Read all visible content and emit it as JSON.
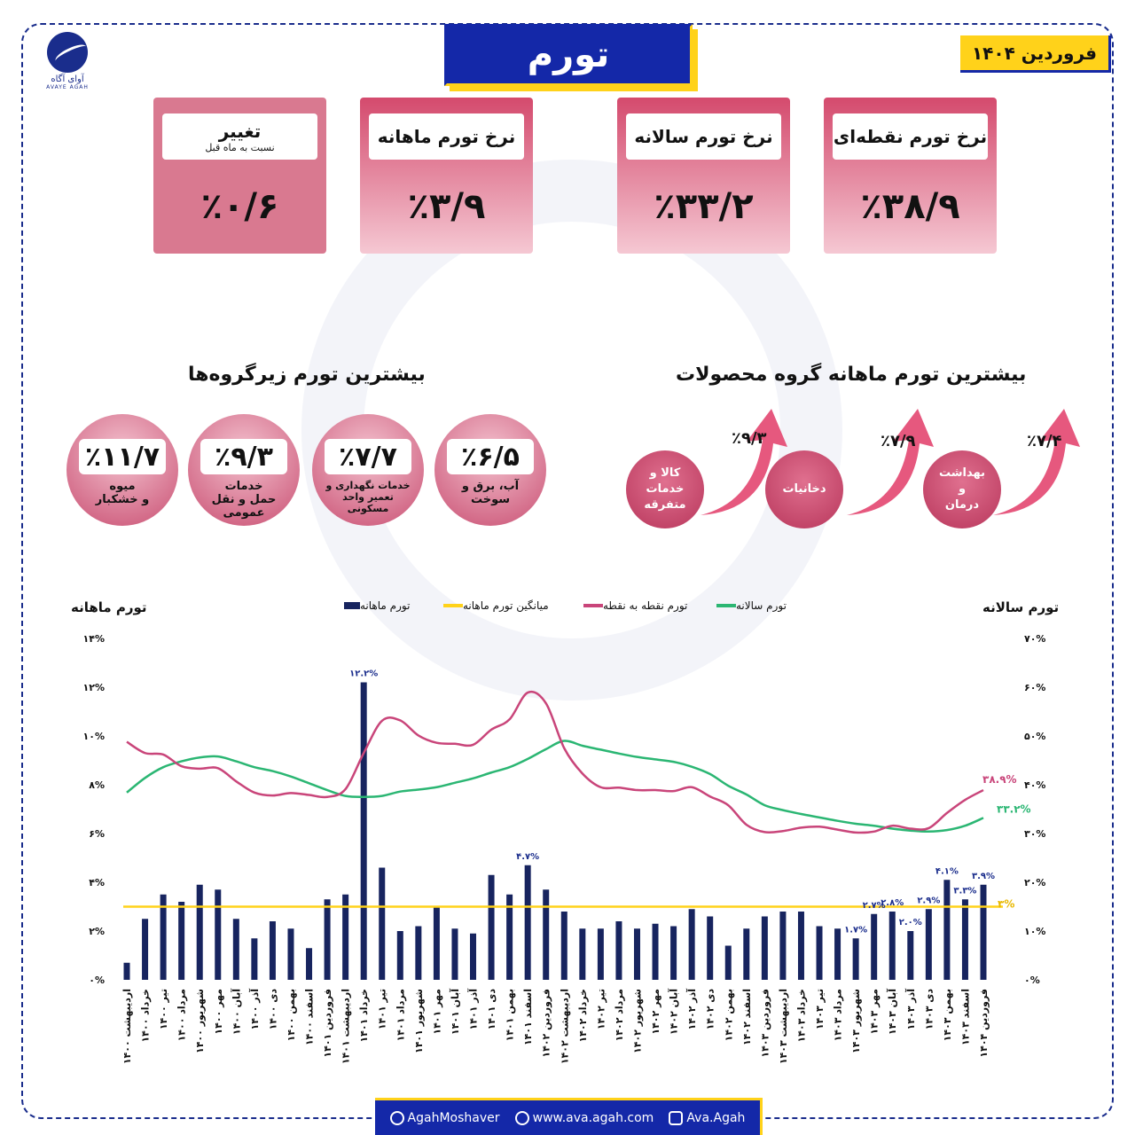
{
  "brand": {
    "name_fa": "آوای آگاه",
    "name_en": "AVAYE AGAH"
  },
  "title": "تورم",
  "date": "فروردین ۱۴۰۴",
  "stats": [
    {
      "label": "نرخ تورم نقطه‌ای",
      "sub": "",
      "value": "٪۳۸/۹"
    },
    {
      "label": "نرخ تورم سالانه",
      "sub": "",
      "value": "٪۳۳/۲"
    },
    {
      "label": "نرخ تورم ماهانه",
      "sub": "",
      "value": "٪۳/۹"
    },
    {
      "label": "تغییر",
      "sub": "نسبت به ماه قبل",
      "value": "٪۰/۶"
    }
  ],
  "subgroups": {
    "title": "بیشترین تورم زیرگروه‌ها",
    "items": [
      {
        "value": "٪۶/۵",
        "name": "آب، برق و\nسوخت"
      },
      {
        "value": "٪۷/۷",
        "name": "خدمات نگهداری و\nتعمیر واحد\nمسکونی"
      },
      {
        "value": "٪۹/۳",
        "name": "خدمات\nحمل و نقل\nعمومی"
      },
      {
        "value": "٪۱۱/۷",
        "name": "میوه\nو خشکبار"
      }
    ]
  },
  "groups": {
    "title": "بیشترین تورم ماهانه گروه محصولات",
    "items": [
      {
        "name": "بهداشت\nو\nدرمان",
        "value": "٪۷/۴"
      },
      {
        "name": "دخانیات",
        "value": "٪۷/۹"
      },
      {
        "name": "کالا و\nخدمات\nمتفرقه",
        "value": "٪۹/۳"
      }
    ]
  },
  "footer": {
    "telegram": "AgahMoshaver",
    "web": "www.ava.agah.com",
    "instagram": "Ava.Agah"
  },
  "colors": {
    "navy": "#1428a8",
    "yellow": "#ffd21a",
    "pink": "#c9457a",
    "green": "#2bb673",
    "bar": "#17245f"
  },
  "chart_data": {
    "type": "bar+line",
    "left_axis_title": "تورم ماهانه",
    "right_axis_title": "تورم سالانه",
    "left_ticks": [
      "۰%",
      "۲%",
      "۴%",
      "۶%",
      "۸%",
      "۱۰%",
      "۱۲%",
      "۱۴%"
    ],
    "right_ticks": [
      "۰%",
      "۱۰%",
      "۲۰%",
      "۳۰%",
      "۴۰%",
      "۵۰%",
      "۶۰%",
      "۷۰%"
    ],
    "ylim_left": [
      0,
      14
    ],
    "ylim_right": [
      0,
      70
    ],
    "legend": [
      {
        "name": "تورم ماهانه",
        "kind": "bar"
      },
      {
        "name": "میانگین تورم ماهانه",
        "kind": "avg"
      },
      {
        "name": "تورم نقطه به نقطه",
        "kind": "point"
      },
      {
        "name": "تورم سالانه",
        "kind": "annual"
      }
    ],
    "categories": [
      "اردیبهشت ۱۴۰۰",
      "خرداد ۱۴۰۰",
      "تیر ۱۴۰۰",
      "مرداد ۱۴۰۰",
      "شهریور ۱۴۰۰",
      "مهر ۱۴۰۰",
      "آبان ۱۴۰۰",
      "آذر ۱۴۰۰",
      "دی ۱۴۰۰",
      "بهمن ۱۴۰۰",
      "اسفند ۱۴۰۰",
      "فروردین ۱۴۰۱",
      "اردیبهشت ۱۴۰۱",
      "خرداد ۱۴۰۱",
      "تیر ۱۴۰۱",
      "مرداد ۱۴۰۱",
      "شهریور ۱۴۰۱",
      "مهر ۱۴۰۱",
      "آبان ۱۴۰۱",
      "آذر ۱۴۰۱",
      "دی ۱۴۰۱",
      "بهمن ۱۴۰۱",
      "اسفند ۱۴۰۱",
      "فروردین ۱۴۰۲",
      "اردیبهشت ۱۴۰۲",
      "خرداد ۱۴۰۲",
      "تیر ۱۴۰۲",
      "مرداد ۱۴۰۲",
      "شهریور ۱۴۰۲",
      "مهر ۱۴۰۲",
      "آبان ۱۴۰۲",
      "آذر ۱۴۰۲",
      "دی ۱۴۰۲",
      "بهمن ۱۴۰۲",
      "اسفند ۱۴۰۲",
      "فروردین ۱۴۰۳",
      "اردیبهشت ۱۴۰۳",
      "خرداد ۱۴۰۳",
      "تیر ۱۴۰۳",
      "مرداد ۱۴۰۳",
      "شهریور ۱۴۰۳",
      "مهر ۱۴۰۳",
      "آبان ۱۴۰۳",
      "آذر ۱۴۰۳",
      "دی ۱۴۰۳",
      "بهمن ۱۴۰۳",
      "اسفند ۱۴۰۳",
      "فروردین ۱۴۰۴"
    ],
    "monthly": [
      0.7,
      2.5,
      3.5,
      3.2,
      3.9,
      3.7,
      2.5,
      1.7,
      2.4,
      2.1,
      1.3,
      3.3,
      3.5,
      12.2,
      4.6,
      2.0,
      2.2,
      3.0,
      2.1,
      1.9,
      4.3,
      3.5,
      4.7,
      3.7,
      2.8,
      2.1,
      2.1,
      2.4,
      2.1,
      2.3,
      2.2,
      2.9,
      2.6,
      1.4,
      2.1,
      2.6,
      2.8,
      2.8,
      2.2,
      2.1,
      1.7,
      2.7,
      2.8,
      2.0,
      2.9,
      4.1,
      3.3,
      3.9
    ],
    "monthly_avg": 3.0,
    "point_to_point": [
      48.8,
      46.5,
      46.2,
      43.8,
      43.3,
      43.4,
      40.7,
      38.4,
      37.8,
      38.3,
      37.9,
      37.5,
      39.1,
      46.5,
      53.1,
      53.2,
      50.1,
      48.6,
      48.4,
      48.2,
      51.3,
      53.4,
      58.9,
      56.7,
      47.5,
      42.3,
      39.5,
      39.4,
      38.9,
      38.9,
      38.7,
      39.5,
      37.6,
      35.8,
      31.8,
      30.3,
      30.5,
      31.2,
      31.4,
      30.8,
      30.2,
      30.4,
      31.6,
      31.0,
      31.1,
      34.2,
      36.9,
      38.9
    ],
    "annual": [
      38.4,
      41.4,
      43.6,
      44.8,
      45.6,
      45.8,
      44.8,
      43.6,
      42.8,
      41.7,
      40.3,
      38.9,
      37.7,
      37.5,
      37.7,
      38.6,
      39.0,
      39.5,
      40.4,
      41.3,
      42.5,
      43.6,
      45.3,
      47.3,
      49.0,
      48.0,
      47.2,
      46.4,
      45.7,
      45.2,
      44.7,
      43.7,
      42.2,
      39.8,
      38.0,
      35.8,
      34.8,
      34.0,
      33.3,
      32.6,
      32.0,
      31.6,
      31.0,
      30.6,
      30.4,
      30.7,
      31.6,
      33.2
    ],
    "bar_labels": {
      "13": "۱۲.۲%",
      "22": "۴.۷%",
      "40": "۱.۷%",
      "41": "۲.۷%",
      "42": "۲.۸%",
      "43": "۲.۰%",
      "44": "۲.۹%",
      "45": "۴.۱%",
      "46": "۳.۳%",
      "47": "۳.۹%"
    },
    "line_labels": {
      "point_last": "۳۸.۹%",
      "annual_last": "۳۳.۲%",
      "avg": "۳%"
    }
  }
}
